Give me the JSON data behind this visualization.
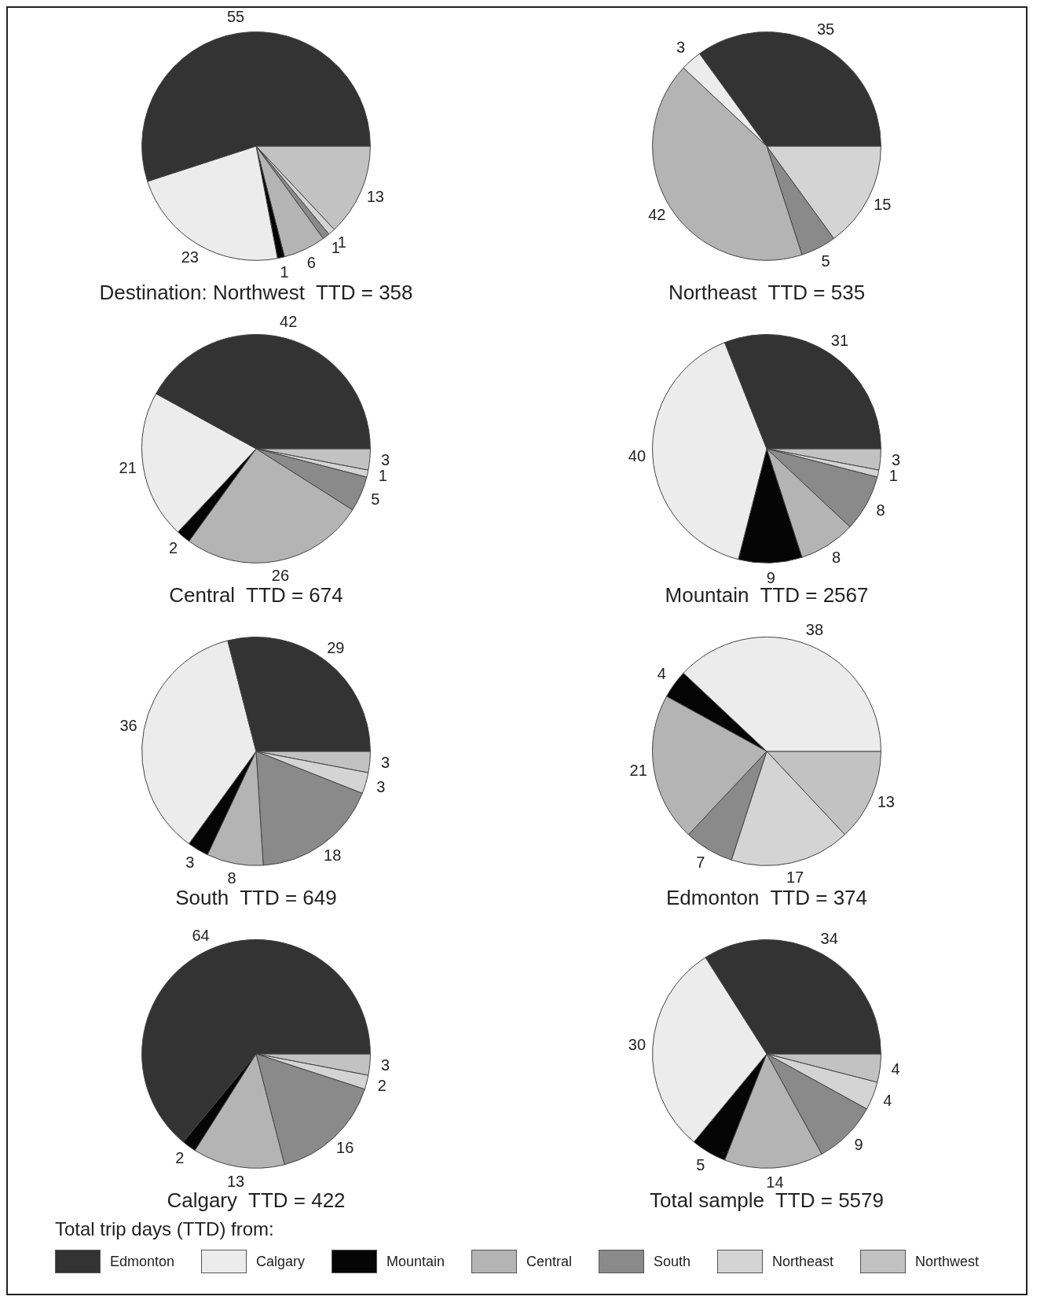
{
  "chart_data": [
    {
      "type": "pie",
      "title": "Destination: Northwest  TTD = 358",
      "categories": [
        null,
        null,
        null,
        null,
        null,
        null,
        null
      ],
      "values": [
        55,
        23,
        1,
        6,
        1,
        1,
        13
      ],
      "colors": [
        "#333333",
        "#ececec",
        "#050505",
        "#b4b4b4",
        "#8a8a8a",
        "#d4d4d4",
        "#c2c2c2"
      ],
      "data_labels": true
    },
    {
      "type": "pie",
      "title": "Northeast  TTD = 535",
      "categories": [
        null,
        null,
        null,
        null,
        null
      ],
      "values": [
        35,
        3,
        42,
        5,
        15
      ],
      "colors": [
        "#333333",
        "#ececec",
        "#b4b4b4",
        "#8a8a8a",
        "#d4d4d4"
      ],
      "data_labels": true
    },
    {
      "type": "pie",
      "title": "Central  TTD = 674",
      "categories": [
        null,
        null,
        null,
        null,
        null,
        null,
        null
      ],
      "values": [
        42,
        21,
        2,
        26,
        5,
        1,
        3
      ],
      "colors": [
        "#333333",
        "#ececec",
        "#050505",
        "#b4b4b4",
        "#8a8a8a",
        "#d4d4d4",
        "#c2c2c2"
      ],
      "data_labels": true
    },
    {
      "type": "pie",
      "title": "Mountain  TTD = 2567",
      "categories": [
        null,
        null,
        null,
        null,
        null,
        null,
        null
      ],
      "values": [
        31,
        40,
        9,
        8,
        8,
        1,
        3
      ],
      "colors": [
        "#333333",
        "#ececec",
        "#050505",
        "#b4b4b4",
        "#8a8a8a",
        "#d4d4d4",
        "#c2c2c2"
      ],
      "data_labels": true
    },
    {
      "type": "pie",
      "title": "South  TTD = 649",
      "categories": [
        null,
        null,
        null,
        null,
        null,
        null,
        null
      ],
      "values": [
        29,
        36,
        3,
        8,
        18,
        3,
        3
      ],
      "colors": [
        "#333333",
        "#ececec",
        "#050505",
        "#b4b4b4",
        "#8a8a8a",
        "#d4d4d4",
        "#c2c2c2"
      ],
      "data_labels": true
    },
    {
      "type": "pie",
      "title": "Edmonton  TTD = 374",
      "categories": [
        null,
        null,
        null,
        null,
        null,
        null
      ],
      "values": [
        38,
        4,
        21,
        7,
        17,
        13
      ],
      "colors": [
        "#ececec",
        "#050505",
        "#b4b4b4",
        "#8a8a8a",
        "#d4d4d4",
        "#c2c2c2"
      ],
      "data_labels": true
    },
    {
      "type": "pie",
      "title": "Calgary  TTD = 422",
      "categories": [
        null,
        null,
        null,
        null,
        null,
        null
      ],
      "values": [
        64,
        2,
        13,
        16,
        2,
        3
      ],
      "colors": [
        "#333333",
        "#050505",
        "#b4b4b4",
        "#8a8a8a",
        "#d4d4d4",
        "#c2c2c2"
      ],
      "data_labels": true
    },
    {
      "type": "pie",
      "title": "Total sample  TTD = 5579",
      "categories": [
        "Edmonton",
        "Calgary",
        "Mountain",
        "Central",
        "South",
        "Northeast",
        "Northwest"
      ],
      "values": [
        34,
        30,
        5,
        14,
        9,
        4,
        4
      ],
      "colors": [
        "#333333",
        "#ececec",
        "#050505",
        "#b4b4b4",
        "#8a8a8a",
        "#d4d4d4",
        "#c2c2c2"
      ],
      "data_labels": true,
      "legend": "bottom",
      "legend_title": "Total trip days (TTD) from:"
    }
  ]
}
